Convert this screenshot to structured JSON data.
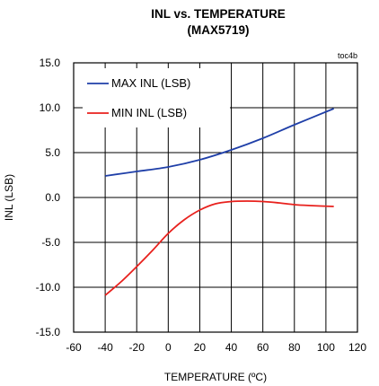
{
  "chart_data": {
    "type": "line",
    "title": "INL vs. TEMPERATURE",
    "subtitle": "(MAX5719)",
    "tag": "toc4b",
    "xlabel": "TEMPERATURE (ºC)",
    "ylabel": "INL (LSB)",
    "xlim": [
      -60,
      120
    ],
    "ylim": [
      -15,
      15
    ],
    "xticks": [
      "-60",
      "-40",
      "-20",
      "0",
      "20",
      "40",
      "60",
      "80",
      "100",
      "120"
    ],
    "yticks": [
      "15.0",
      "10.0",
      "5.0",
      "0.0",
      "-5.0",
      "-10.0",
      "-15.0"
    ],
    "xtick_values": [
      -60,
      -40,
      -20,
      0,
      20,
      40,
      60,
      80,
      100,
      120
    ],
    "ytick_values": [
      15,
      10,
      5,
      0,
      -5,
      -10,
      -15
    ],
    "grid": true,
    "legend_position": "top-left",
    "series": [
      {
        "name": "MAX INL (LSB)",
        "color": "#1f3fa8",
        "x": [
          -40,
          -20,
          0,
          20,
          40,
          60,
          80,
          105
        ],
        "y": [
          2.4,
          2.9,
          3.4,
          4.2,
          5.3,
          6.6,
          8.1,
          9.9
        ]
      },
      {
        "name": "MIN INL (LSB)",
        "color": "#e8211d",
        "x": [
          -40,
          -30,
          -20,
          -10,
          0,
          10,
          20,
          30,
          40,
          50,
          60,
          70,
          80,
          90,
          105
        ],
        "y": [
          -10.9,
          -9.4,
          -7.7,
          -5.9,
          -4.0,
          -2.5,
          -1.4,
          -0.7,
          -0.45,
          -0.4,
          -0.45,
          -0.6,
          -0.8,
          -0.9,
          -1.0
        ]
      }
    ]
  }
}
